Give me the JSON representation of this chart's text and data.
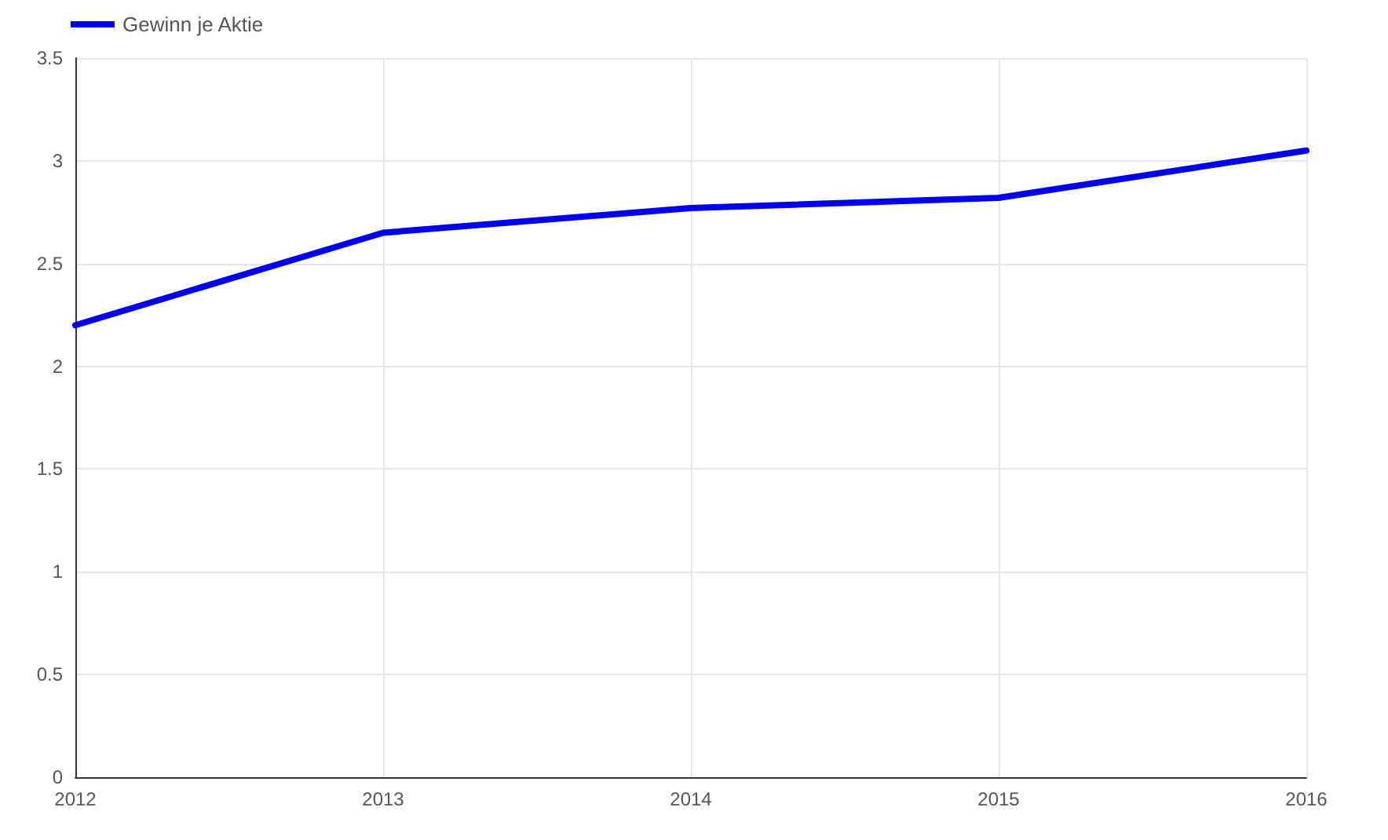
{
  "chart_data": {
    "type": "line",
    "categories": [
      "2012",
      "2013",
      "2014",
      "2015",
      "2016"
    ],
    "series": [
      {
        "name": "Gewinn je Aktie",
        "color": "#0000ee",
        "values": [
          2.2,
          2.65,
          2.77,
          2.82,
          3.05
        ]
      }
    ],
    "ylim": [
      0,
      3.5
    ],
    "yticks": [
      0,
      0.5,
      1,
      1.5,
      2,
      2.5,
      3,
      3.5
    ],
    "grid": true,
    "legend": "top left",
    "marker": "none",
    "line_style": "solid"
  }
}
